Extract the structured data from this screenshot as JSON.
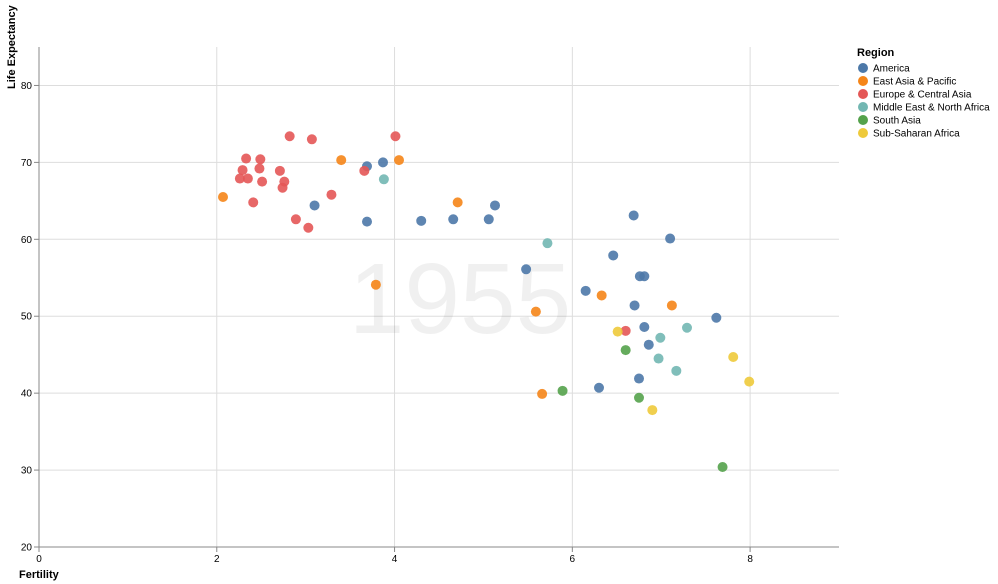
{
  "chart_data": {
    "type": "scatter",
    "year_label": "1955",
    "xlabel": "Fertility",
    "ylabel": "Life Expectancy",
    "xlim": [
      0,
      9
    ],
    "ylim": [
      20,
      85
    ],
    "x_ticks": [
      "0",
      "2",
      "4",
      "6",
      "8"
    ],
    "y_ticks": [
      "20",
      "30",
      "40",
      "50",
      "60",
      "70",
      "80"
    ],
    "grid": true,
    "legend": {
      "title": "Region",
      "placement": "right",
      "entries": [
        {
          "name": "America",
          "color": "#4c78a8"
        },
        {
          "name": "East Asia & Pacific",
          "color": "#f58518"
        },
        {
          "name": "Europe & Central Asia",
          "color": "#e45756"
        },
        {
          "name": "Middle East & North Africa",
          "color": "#72b7b2"
        },
        {
          "name": "South Asia",
          "color": "#54a24b"
        },
        {
          "name": "Sub-Saharan Africa",
          "color": "#eeca3b"
        }
      ]
    },
    "series": [
      {
        "name": "America",
        "color": "#4c78a8",
        "points": [
          [
            3.1,
            64.4
          ],
          [
            3.69,
            69.5
          ],
          [
            3.87,
            70.0
          ],
          [
            3.69,
            62.3
          ],
          [
            4.3,
            62.4
          ],
          [
            4.66,
            62.6
          ],
          [
            5.06,
            62.6
          ],
          [
            5.13,
            64.4
          ],
          [
            5.48,
            56.1
          ],
          [
            6.15,
            53.3
          ],
          [
            6.46,
            57.9
          ],
          [
            6.69,
            63.1
          ],
          [
            7.1,
            60.1
          ],
          [
            6.76,
            55.2
          ],
          [
            6.81,
            55.2
          ],
          [
            6.7,
            51.4
          ],
          [
            6.81,
            48.6
          ],
          [
            6.86,
            46.3
          ],
          [
            6.75,
            41.9
          ],
          [
            6.3,
            40.7
          ],
          [
            7.62,
            49.8
          ]
        ]
      },
      {
        "name": "East Asia & Pacific",
        "color": "#f58518",
        "points": [
          [
            2.07,
            65.5
          ],
          [
            3.4,
            70.3
          ],
          [
            4.05,
            70.3
          ],
          [
            4.71,
            64.8
          ],
          [
            3.79,
            54.1
          ],
          [
            5.59,
            50.6
          ],
          [
            6.33,
            52.7
          ],
          [
            7.12,
            51.4
          ],
          [
            5.66,
            39.9
          ]
        ]
      },
      {
        "name": "Europe & Central Asia",
        "color": "#e45756",
        "points": [
          [
            2.33,
            70.5
          ],
          [
            2.49,
            70.4
          ],
          [
            2.82,
            73.4
          ],
          [
            3.07,
            73.0
          ],
          [
            4.01,
            73.4
          ],
          [
            2.29,
            69.0
          ],
          [
            2.48,
            69.2
          ],
          [
            2.71,
            68.9
          ],
          [
            2.26,
            67.9
          ],
          [
            2.35,
            67.9
          ],
          [
            2.51,
            67.5
          ],
          [
            2.76,
            67.5
          ],
          [
            2.74,
            66.7
          ],
          [
            3.29,
            65.8
          ],
          [
            2.41,
            64.8
          ],
          [
            2.89,
            62.6
          ],
          [
            3.03,
            61.5
          ],
          [
            3.66,
            68.9
          ],
          [
            6.6,
            48.1
          ]
        ]
      },
      {
        "name": "Middle East & North Africa",
        "color": "#72b7b2",
        "points": [
          [
            3.88,
            67.8
          ],
          [
            5.72,
            59.5
          ],
          [
            7.29,
            48.5
          ],
          [
            6.99,
            47.2
          ],
          [
            6.97,
            44.5
          ],
          [
            7.17,
            42.9
          ]
        ]
      },
      {
        "name": "South Asia",
        "color": "#54a24b",
        "points": [
          [
            6.6,
            45.6
          ],
          [
            5.89,
            40.3
          ],
          [
            6.75,
            39.4
          ],
          [
            7.69,
            30.4
          ]
        ]
      },
      {
        "name": "Sub-Saharan Africa",
        "color": "#eeca3b",
        "points": [
          [
            6.51,
            48.0
          ],
          [
            7.81,
            44.7
          ],
          [
            7.99,
            41.5
          ],
          [
            6.9,
            37.8
          ]
        ]
      }
    ]
  }
}
